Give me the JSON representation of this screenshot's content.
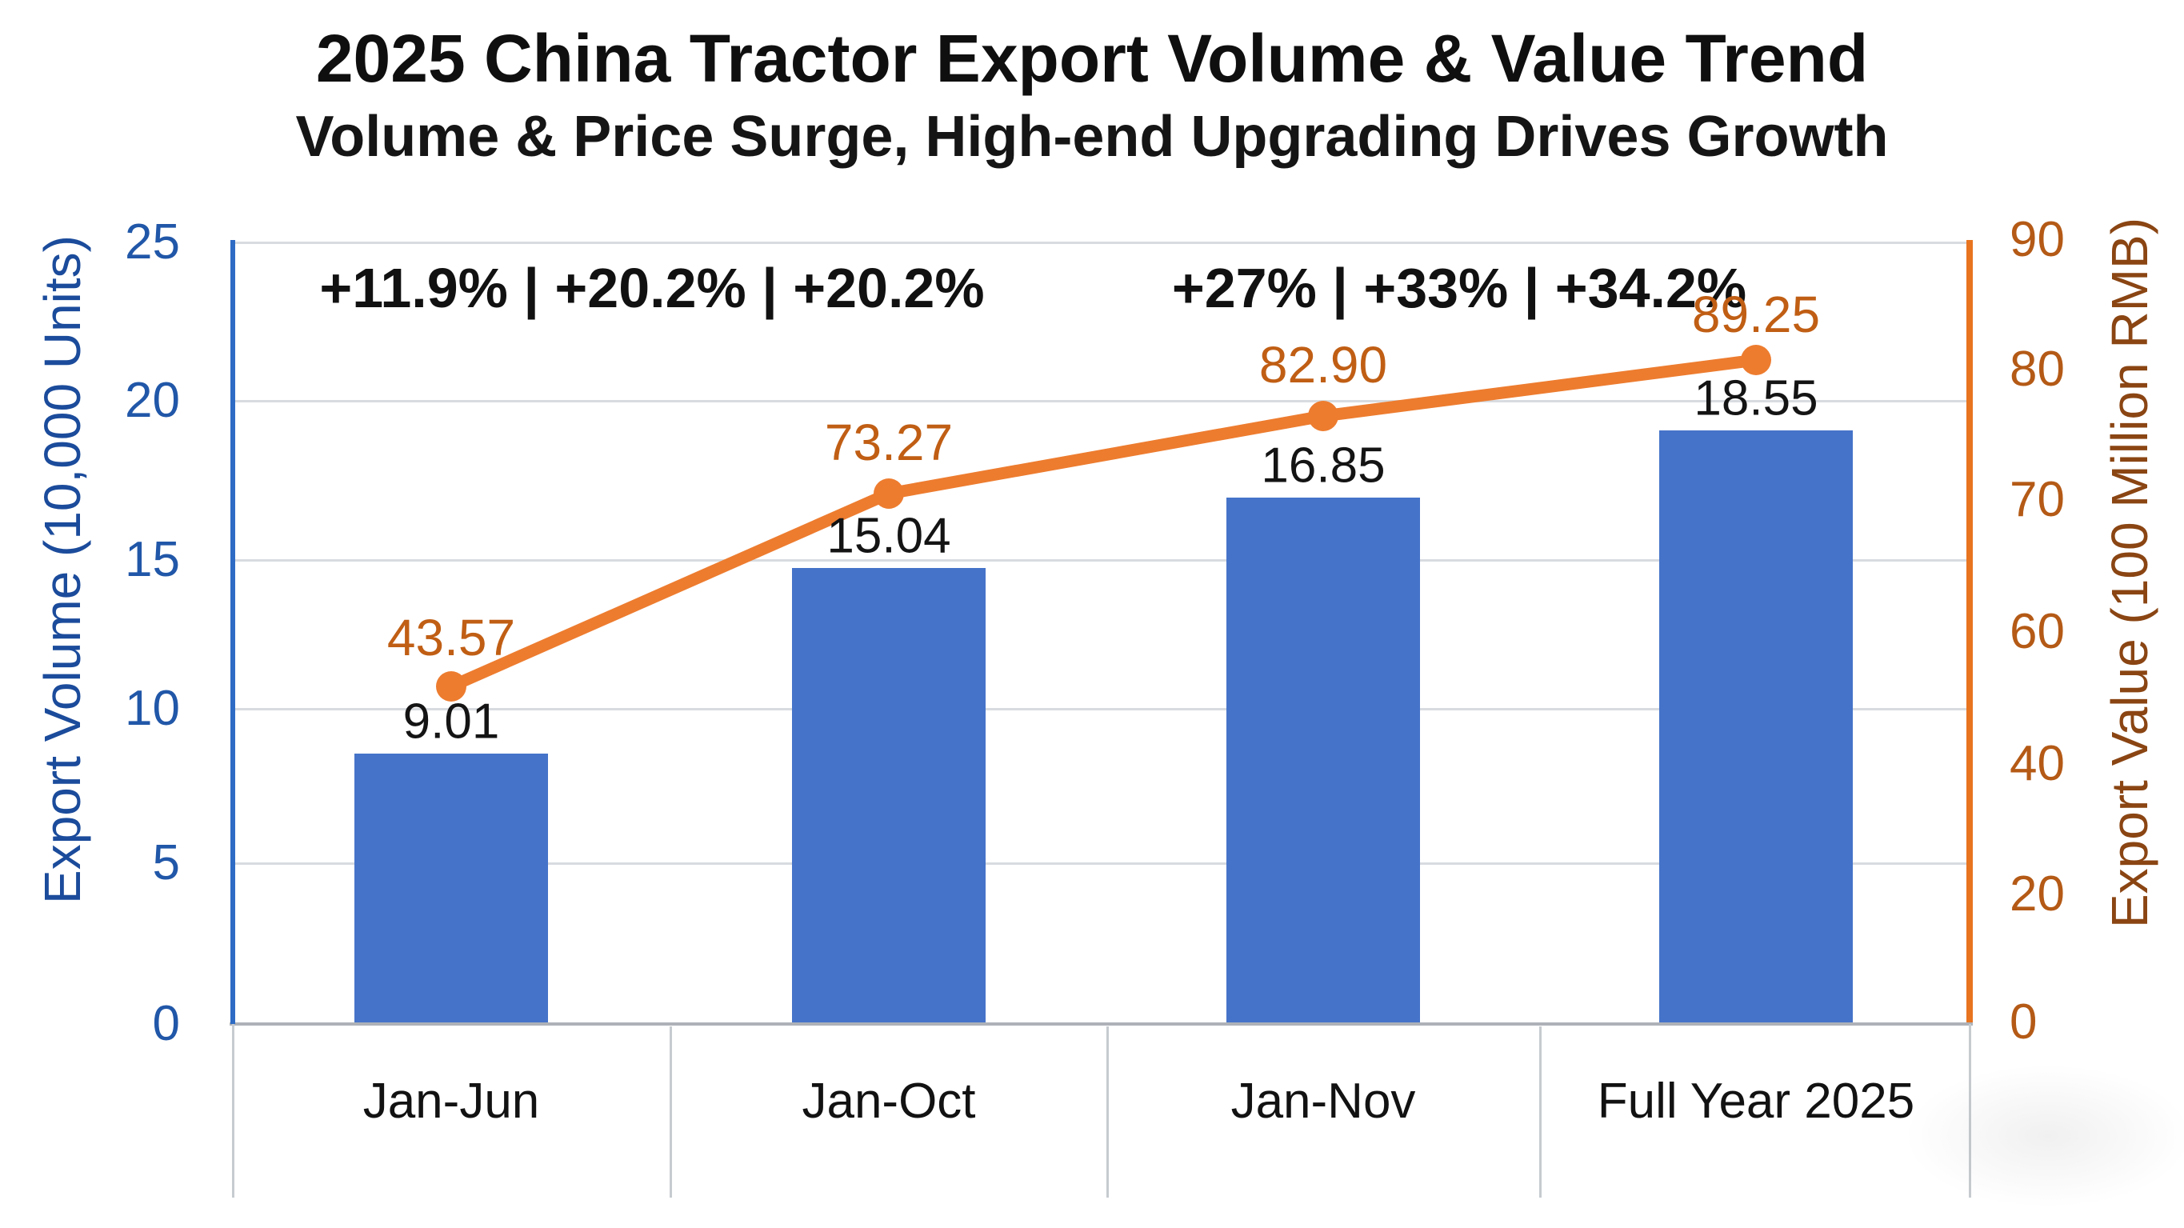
{
  "header": {
    "title": "2025 China Tractor Export Volume & Value Trend",
    "subtitle": "Volume & Price Surge, High-end Upgrading Drives Growth"
  },
  "chart_data": {
    "type": "combo-bar-line",
    "title": "2025 China Tractor Export Volume & Value Trend",
    "subtitle": "Volume & Price Surge, High-end Upgrading Drives Growth",
    "categories": [
      "Jan-Jun",
      "Jan-Oct",
      "Jan-Nov",
      "Full Year 2025"
    ],
    "series": [
      {
        "name": "Export Volume",
        "chart_type": "bar",
        "axis": "left",
        "unit": "10,000 Units",
        "values": [
          9.01,
          15.04,
          16.85,
          18.55
        ],
        "labels": [
          "9.01",
          "15.04",
          "16.85",
          "18.55"
        ],
        "color": "#4573C9",
        "label_color": "#141414"
      },
      {
        "name": "Export Value",
        "chart_type": "line",
        "axis": "right",
        "unit": "100 Million RMB",
        "values": [
          43.57,
          73.27,
          82.9,
          89.25
        ],
        "labels": [
          "43.57",
          "73.27",
          "82.90",
          "89.25"
        ],
        "color": "#ED7C2F",
        "label_color": "#C05E14"
      }
    ],
    "y_axis_left": {
      "title": "Export Volume (10,000 Units)",
      "tick_labels": [
        "25",
        "20",
        "15",
        "10",
        "5",
        "0"
      ],
      "range": [
        0,
        25
      ],
      "axis_color": "#2E6BC5",
      "tick_color": "#2157A8",
      "title_color": "#1B4B9B"
    },
    "y_axis_right": {
      "title": "Export Value (100 Million RMB)",
      "tick_labels": [
        "90",
        "80",
        "70",
        "60",
        "40",
        "20",
        "0"
      ],
      "range": [
        0,
        90
      ],
      "axis_color": "#E87420",
      "tick_color": "#B45A16",
      "title_color": "#8A4513"
    },
    "annotations": {
      "volume_growth": "+11.9% | +20.2% | +20.2%",
      "value_growth": "+27% | +33% | +34.2%"
    },
    "grid": true,
    "legend": "none",
    "background": "#FFFFFF"
  }
}
